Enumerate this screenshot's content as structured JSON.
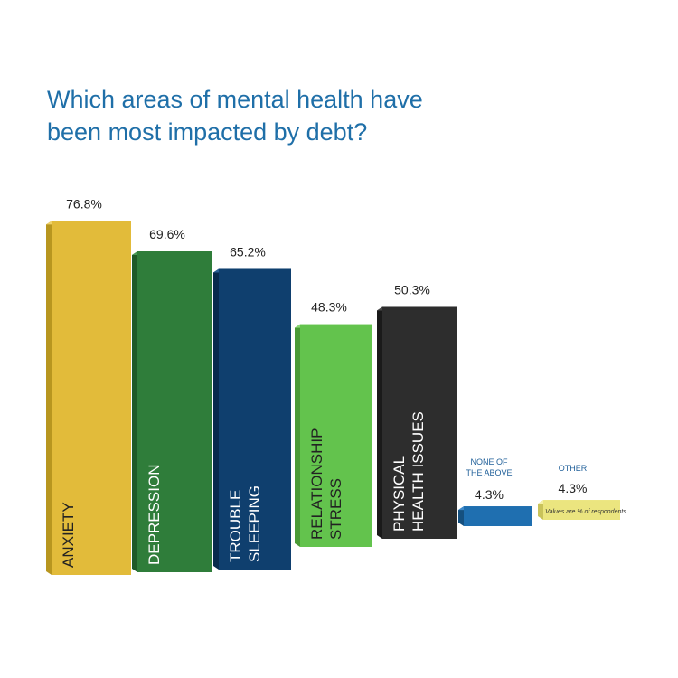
{
  "chart_data": {
    "type": "bar",
    "title_lines": [
      "Which areas of mental health have",
      "been most impacted by debt?"
    ],
    "categories": [
      "ANXIETY",
      "DEPRESSION",
      "TROUBLE SLEEPING",
      "RELATIONSHIP STRESS",
      "PHYSICAL HEALTH ISSUES",
      "NONE OF THE ABOVE",
      "OTHER"
    ],
    "category_lines": [
      [
        "ANXIETY"
      ],
      [
        "DEPRESSION"
      ],
      [
        "TROUBLE",
        "SLEEPING"
      ],
      [
        "RELATIONSHIP",
        "STRESS"
      ],
      [
        "PHYSICAL",
        "HEALTH ISSUES"
      ],
      [
        "NONE OF",
        "THE ABOVE"
      ],
      [
        "OTHER"
      ]
    ],
    "values": [
      76.8,
      69.6,
      65.2,
      48.3,
      50.3,
      4.3,
      4.3
    ],
    "value_labels": [
      "76.8%",
      "69.6%",
      "65.2%",
      "48.3%",
      "50.3%",
      "4.3%",
      "4.3%"
    ],
    "colors": [
      "#e2bb3a",
      "#2f7d3a",
      "#0f3f6e",
      "#63c34d",
      "#2d2d2d",
      "#1f6fb0",
      "#ebe57f"
    ],
    "side_colors": [
      "#b8961f",
      "#1f5a28",
      "#082a4d",
      "#4a9a36",
      "#1a1a1a",
      "#15507f",
      "#c9c35a"
    ],
    "top_colors": [
      "#f0d26a",
      "#4a9a55",
      "#2a5f94",
      "#8ad874",
      "#4a4a4a",
      "#3f8bcc",
      "#f5f0a8"
    ],
    "label_colors": [
      "#222222",
      "#ffffff",
      "#ffffff",
      "#222222",
      "#ffffff",
      "#1f5f99",
      "#1f5f99"
    ],
    "note": "Values are % of respondents"
  }
}
